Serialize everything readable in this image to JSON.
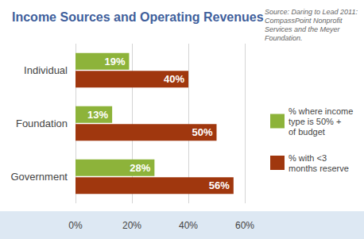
{
  "chart_data": {
    "type": "bar",
    "orientation": "horizontal",
    "title": "Income Sources and Operating Revenues",
    "subtitle": "Source: Daring to Lead 2011: CompassPoint Nonprofit Services and the Meyer Foundation.",
    "categories": [
      "Individual",
      "Foundation",
      "Government"
    ],
    "series": [
      {
        "name": "% where income type is 50% + of budget",
        "color": "#8db33a",
        "values": [
          19,
          13,
          28
        ],
        "value_labels": [
          "19%",
          "13%",
          "28%"
        ]
      },
      {
        "name": "% with <3 months reserve",
        "color": "#a0370e",
        "values": [
          40,
          50,
          56
        ],
        "value_labels": [
          "40%",
          "50%",
          "56%"
        ]
      }
    ],
    "xlim": [
      0,
      60
    ],
    "xticks": [
      {
        "value": 0,
        "label": "0%"
      },
      {
        "value": 20,
        "label": "20%"
      },
      {
        "value": 40,
        "label": "40%"
      },
      {
        "value": 60,
        "label": "60%"
      }
    ],
    "grid": true,
    "data_labels": true,
    "legend": "right"
  }
}
